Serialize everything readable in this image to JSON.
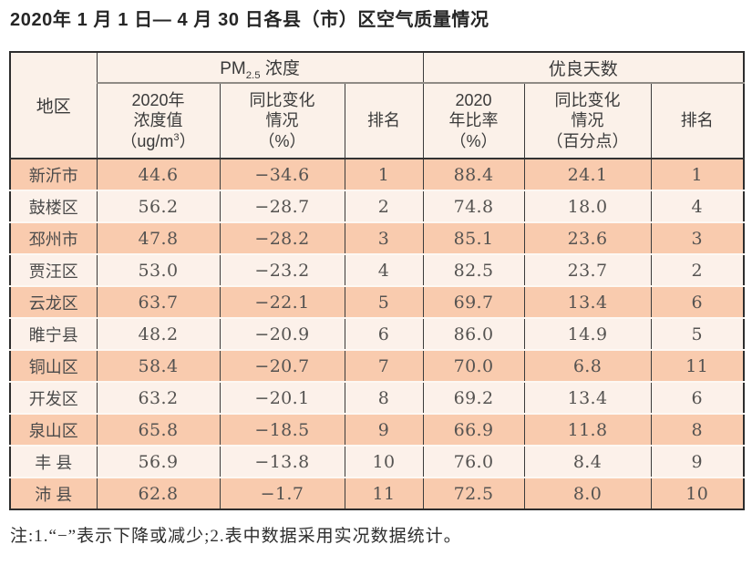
{
  "title": "2020年 1 月 1 日— 4 月 30 日各县（市）区空气质量情况",
  "table": {
    "header": {
      "region": "地区",
      "pm_group": {
        "prefix": "PM",
        "sub": "2.5",
        "suffix": " 浓度"
      },
      "good_group": "优良天数",
      "pm_value": {
        "line1": "2020年",
        "line2": "浓度值",
        "unit_prefix": "（ug/m",
        "unit_sup": "3",
        "unit_suffix": "）"
      },
      "pm_change": {
        "line1": "同比变化",
        "line2": "情况",
        "line3": "（%）"
      },
      "pm_rank": "排名",
      "good_ratio": {
        "line1": "2020",
        "line2": "年比率",
        "line3": "（%）"
      },
      "good_change": {
        "line1": "同比变化",
        "line2": "情况",
        "line3": "（百分点）"
      },
      "good_rank": "排名"
    },
    "rows": [
      {
        "region": "新沂市",
        "pm": "44.6",
        "pm_change": "−34.6",
        "pm_rank": "1",
        "ratio": "88.4",
        "ratio_change": "24.1",
        "ratio_rank": "1"
      },
      {
        "region": "鼓楼区",
        "pm": "56.2",
        "pm_change": "−28.7",
        "pm_rank": "2",
        "ratio": "74.8",
        "ratio_change": "18.0",
        "ratio_rank": "4"
      },
      {
        "region": "邳州市",
        "pm": "47.8",
        "pm_change": "−28.2",
        "pm_rank": "3",
        "ratio": "85.1",
        "ratio_change": "23.6",
        "ratio_rank": "3"
      },
      {
        "region": "贾汪区",
        "pm": "53.0",
        "pm_change": "−23.2",
        "pm_rank": "4",
        "ratio": "82.5",
        "ratio_change": "23.7",
        "ratio_rank": "2"
      },
      {
        "region": "云龙区",
        "pm": "63.7",
        "pm_change": "−22.1",
        "pm_rank": "5",
        "ratio": "69.7",
        "ratio_change": "13.4",
        "ratio_rank": "6"
      },
      {
        "region": "睢宁县",
        "pm": "48.2",
        "pm_change": "−20.9",
        "pm_rank": "6",
        "ratio": "86.0",
        "ratio_change": "14.9",
        "ratio_rank": "5"
      },
      {
        "region": "铜山区",
        "pm": "58.4",
        "pm_change": "−20.7",
        "pm_rank": "7",
        "ratio": "70.0",
        "ratio_change": "6.8",
        "ratio_rank": "11"
      },
      {
        "region": "开发区",
        "pm": "63.2",
        "pm_change": "−20.1",
        "pm_rank": "8",
        "ratio": "69.2",
        "ratio_change": "13.4",
        "ratio_rank": "6"
      },
      {
        "region": "泉山区",
        "pm": "65.8",
        "pm_change": "−18.5",
        "pm_rank": "9",
        "ratio": "66.9",
        "ratio_change": "11.8",
        "ratio_rank": "8"
      },
      {
        "region": "丰 县",
        "pm": "56.9",
        "pm_change": "−13.8",
        "pm_rank": "10",
        "ratio": "76.0",
        "ratio_change": "8.4",
        "ratio_rank": "9"
      },
      {
        "region": "沛 县",
        "pm": "62.8",
        "pm_change": "−1.7",
        "pm_rank": "11",
        "ratio": "72.5",
        "ratio_change": "8.0",
        "ratio_rank": "10"
      }
    ]
  },
  "footnote": "注:1.“−”表示下降或减少;2.表中数据采用实况数据统计。",
  "colors": {
    "row_odd": "#f9cbae",
    "row_even": "#fcf1ea",
    "header_bg": "#fbf1e9",
    "border_dark": "#2d2d2d",
    "group_divider": "#8f8b85"
  }
}
